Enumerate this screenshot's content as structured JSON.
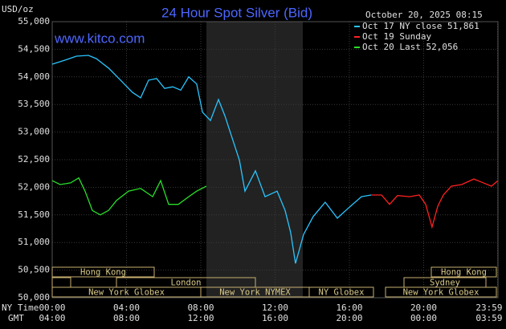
{
  "chart_data": {
    "type": "line",
    "title": "24 Hour Spot Silver (Bid)",
    "subtitle": "October 20, 2025 08:15",
    "watermark": "www.kitco.com",
    "ylabel": "USD/oz",
    "xlabel": "NY Time",
    "x2label": "GMT",
    "xlim": [
      0,
      24
    ],
    "xticks": [
      {
        "value": 0,
        "label": "00:00"
      },
      {
        "value": 4,
        "label": "04:00"
      },
      {
        "value": 8,
        "label": "08:00"
      },
      {
        "value": 12,
        "label": "12:00"
      },
      {
        "value": 16,
        "label": "16:00"
      },
      {
        "value": 20,
        "label": "20:00"
      },
      {
        "value": 23.98,
        "label": "23:59"
      }
    ],
    "gmt_labels": [
      "04:00",
      "08:00",
      "12:00",
      "16:00",
      "20:00",
      "00:00",
      "03:59"
    ],
    "ylim": [
      50000,
      55000
    ],
    "yticks": [
      {
        "value": 50000,
        "label": "50,000"
      },
      {
        "value": 50500,
        "label": "50,500"
      },
      {
        "value": 51000,
        "label": "51,000"
      },
      {
        "value": 51500,
        "label": "51,500"
      },
      {
        "value": 52000,
        "label": "52,000"
      },
      {
        "value": 52500,
        "label": "52,500"
      },
      {
        "value": 53000,
        "label": "53,000"
      },
      {
        "value": 53500,
        "label": "53,500"
      },
      {
        "value": 54000,
        "label": "54,000"
      },
      {
        "value": 54500,
        "label": "54,500"
      },
      {
        "value": 55000,
        "label": "55,000"
      }
    ],
    "grid": true,
    "sessions": [
      "Hong Kong",
      "London",
      "New York Globex",
      "New York NYMEX",
      "NY Globex",
      "Hong Kong",
      "Sydney",
      "New York Globex"
    ],
    "series": [
      {
        "name": "Oct 17 NY close 51,861",
        "color": "#29c5ff",
        "x": [
          0,
          0.65,
          1.3,
          1.95,
          2.38,
          3.03,
          3.68,
          4.32,
          4.76,
          5.19,
          5.62,
          6.05,
          6.49,
          6.92,
          7.35,
          7.78,
          8.09,
          8.52,
          8.95,
          9.3,
          9.73,
          10.08,
          10.38,
          10.94,
          11.46,
          12.11,
          12.54,
          12.84,
          13.1,
          13.54,
          14.05,
          14.7,
          15.35,
          16.0,
          16.65,
          17.17
        ],
        "values": [
          54230,
          54300,
          54375,
          54390,
          54330,
          54160,
          53940,
          53720,
          53620,
          53940,
          53970,
          53790,
          53820,
          53760,
          54000,
          53870,
          53360,
          53210,
          53590,
          53290,
          52850,
          52490,
          51930,
          52300,
          51830,
          51930,
          51580,
          51180,
          50620,
          51150,
          51470,
          51730,
          51440,
          51640,
          51830,
          51860
        ]
      },
      {
        "name": "Oct 19 Sunday",
        "color": "#ff2020",
        "x": [
          17.17,
          17.73,
          18.16,
          18.59,
          19.24,
          19.76,
          20.11,
          20.45,
          20.76,
          21.06,
          21.49,
          22.05,
          22.7,
          23.14,
          23.65,
          24.0
        ],
        "values": [
          51860,
          51860,
          51690,
          51850,
          51830,
          51860,
          51690,
          51280,
          51660,
          51860,
          52020,
          52050,
          52150,
          52090,
          52020,
          52120
        ]
      },
      {
        "name": "Oct 20 Last 52,056",
        "color": "#28e028",
        "x": [
          0,
          0.43,
          0.99,
          1.43,
          1.77,
          2.16,
          2.59,
          3.03,
          3.46,
          4.11,
          4.76,
          5.41,
          5.84,
          6.27,
          6.79,
          7.35,
          7.78,
          8.3
        ],
        "values": [
          52120,
          52050,
          52080,
          52170,
          51930,
          51580,
          51500,
          51580,
          51760,
          51930,
          51980,
          51830,
          52120,
          51690,
          51690,
          51830,
          51930,
          52020
        ]
      }
    ]
  }
}
